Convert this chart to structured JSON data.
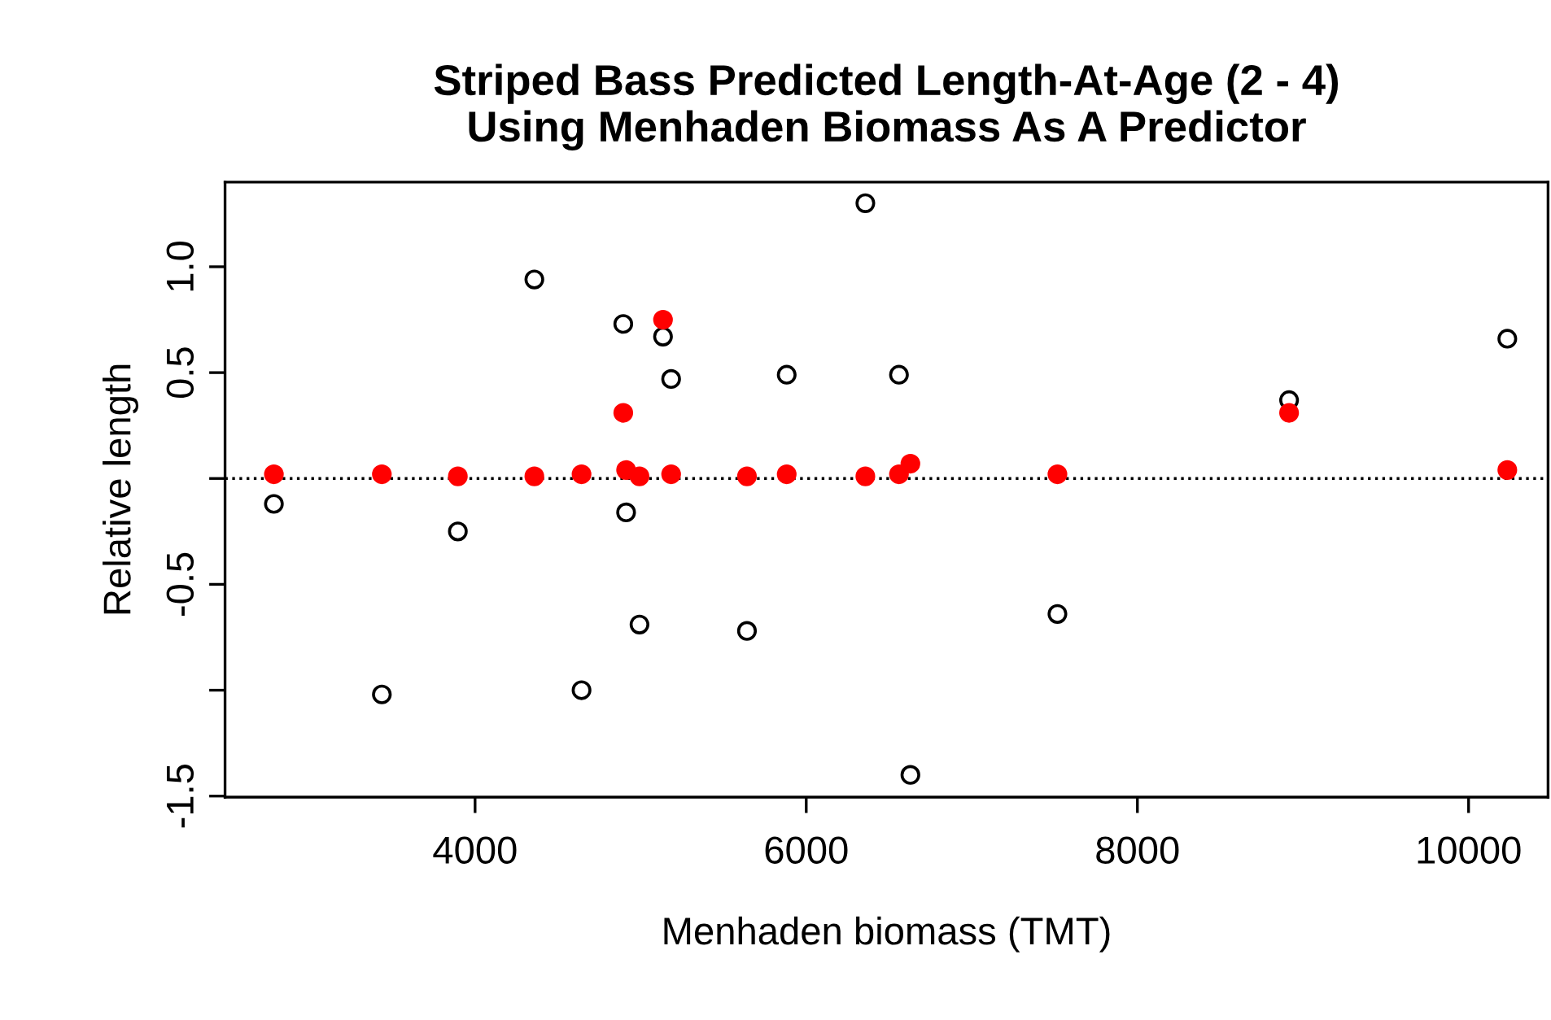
{
  "chart_data": {
    "type": "scatter",
    "title": "Striped Bass Predicted Length-At-Age (2 - 4)\nUsing Menhaden Biomass As A Predictor",
    "xlabel": "Menhaden biomass (TMT)",
    "ylabel": "Relative length",
    "xlim": [
      2490,
      10480
    ],
    "ylim": [
      -1.505,
      1.4
    ],
    "xticks": [
      4000,
      6000,
      8000,
      10000
    ],
    "yticks": [
      {
        "value": -1.5,
        "label": "-1.5"
      },
      {
        "value": -1,
        "label": null
      },
      {
        "value": -0.5,
        "label": "-0.5"
      },
      {
        "value": 0,
        "label": null
      },
      {
        "value": 0.5,
        "label": "0.5"
      },
      {
        "value": 1,
        "label": "1.0"
      }
    ],
    "marker": "circle",
    "grid": false,
    "legend": false,
    "ref_lines": [
      {
        "axis": "y",
        "value": 0,
        "color": "#000000",
        "line_style": "dotted"
      }
    ],
    "series": [
      {
        "color": "#000000",
        "x": [
          2785,
          3437,
          3896,
          4358,
          4643,
          4895,
          4912,
          4993,
          5135,
          5184,
          5642,
          5882,
          6357,
          6560,
          6629,
          7517,
          8916,
          10234
        ],
        "values": [
          -0.12,
          -1.02,
          -0.25,
          0.94,
          -1.0,
          0.73,
          -0.16,
          -0.69,
          0.67,
          0.47,
          -0.72,
          0.49,
          1.3,
          0.49,
          -1.4,
          -0.64,
          0.37,
          0.66
        ]
      },
      {
        "color": "#ff0000",
        "x": [
          2785,
          3437,
          3896,
          4358,
          4643,
          4895,
          4912,
          4993,
          5135,
          5184,
          5642,
          5882,
          6357,
          6560,
          6629,
          7517,
          8916,
          10234
        ],
        "values": [
          0.02,
          0.02,
          0.01,
          0.01,
          0.02,
          0.31,
          0.04,
          0.01,
          0.75,
          0.02,
          0.01,
          0.02,
          0.01,
          0.02,
          0.07,
          0.02,
          0.31,
          0.04
        ]
      }
    ]
  }
}
